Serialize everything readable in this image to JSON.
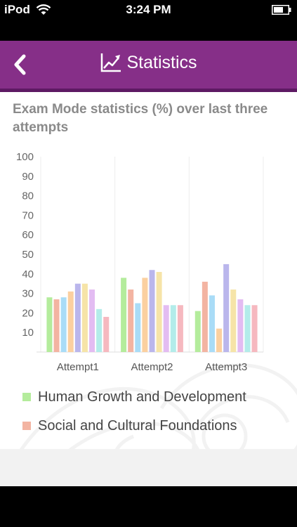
{
  "status_bar": {
    "carrier": "iPod",
    "time": "3:24 PM",
    "wifi_icon": "wifi-icon",
    "battery_icon": "battery-icon"
  },
  "nav_bar": {
    "title": "Statistics",
    "back_icon": "chevron-left-icon",
    "title_icon": "trend-chart-icon",
    "color": "#862f88"
  },
  "heading": "Exam Mode statistics (%) over last three attempts",
  "legend": [
    {
      "label": "Human Growth and Development",
      "color": "#b4ec9c"
    },
    {
      "label": "Social and Cultural Foundations",
      "color": "#f3b4a2"
    }
  ],
  "chart_data": {
    "type": "bar",
    "categories": [
      "Attempt1",
      "Attempt2",
      "Attempt3"
    ],
    "ylim": [
      0,
      100
    ],
    "yticks": [
      10,
      20,
      30,
      40,
      50,
      60,
      70,
      80,
      90,
      100
    ],
    "grid": "vertical category separators",
    "series": [
      {
        "name": "Human Growth and Development",
        "color": "#b4ec9c",
        "values": [
          28,
          38,
          21
        ]
      },
      {
        "name": "Social and Cultural Foundations",
        "color": "#f3b4a2",
        "values": [
          27,
          32,
          36
        ]
      },
      {
        "color": "#a9dcf7",
        "values": [
          28,
          25,
          29
        ]
      },
      {
        "color": "#fbd0a0",
        "values": [
          31,
          38,
          12
        ]
      },
      {
        "color": "#bab6ec",
        "values": [
          35,
          42,
          45
        ]
      },
      {
        "color": "#f6e4a8",
        "values": [
          35,
          41,
          32
        ]
      },
      {
        "color": "#e3bcf2",
        "values": [
          32,
          24,
          27
        ]
      },
      {
        "color": "#b3ecea",
        "values": [
          22,
          24,
          24
        ]
      },
      {
        "color": "#f6b8bf",
        "values": [
          18,
          24,
          24
        ]
      }
    ]
  }
}
